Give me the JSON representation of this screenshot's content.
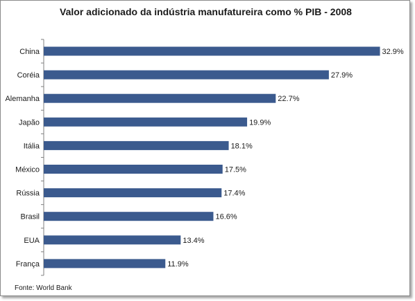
{
  "chart_data": {
    "type": "bar",
    "orientation": "horizontal",
    "title": "Valor adicionado da indústria manufatureira como % PIB - 2008",
    "categories": [
      "China",
      "Coréia",
      "Alemanha",
      "Japão",
      "Itália",
      "México",
      "Rússia",
      "Brasil",
      "EUA",
      "França"
    ],
    "values": [
      32.9,
      27.9,
      22.7,
      19.9,
      18.1,
      17.5,
      17.4,
      16.6,
      13.4,
      11.9
    ],
    "value_labels": [
      "32.9%",
      "27.9%",
      "22.7%",
      "19.9%",
      "18.1%",
      "17.5%",
      "17.4%",
      "16.6%",
      "13.4%",
      "11.9%"
    ],
    "xlim": [
      0,
      33
    ],
    "grid": false,
    "bar_color": "#3b5a8e"
  },
  "footer": {
    "source": "Fonte: World Bank"
  }
}
